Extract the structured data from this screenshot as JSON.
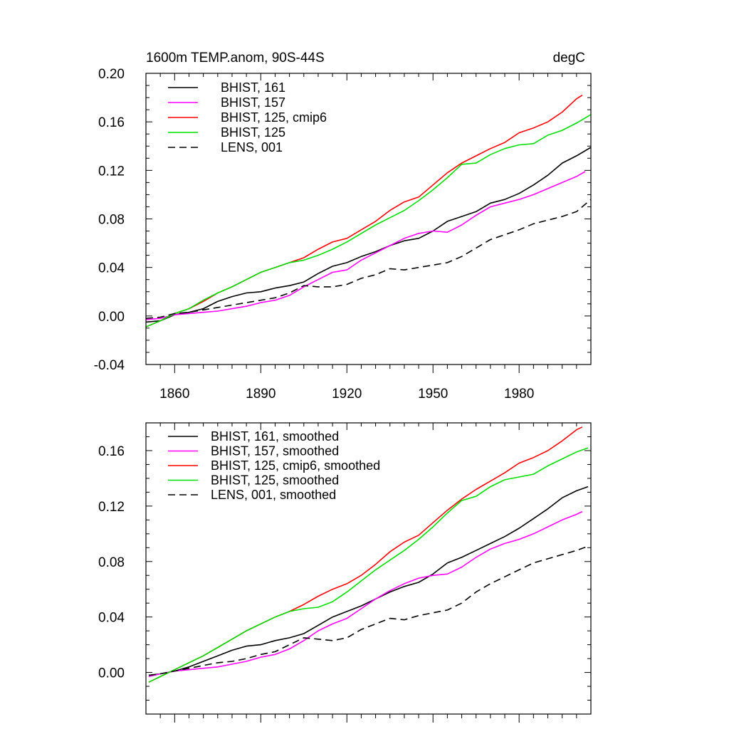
{
  "chart_data": [
    {
      "type": "line",
      "title": "1600m TEMP.anom, 90S-44S",
      "units": "degC",
      "xlim": [
        1850,
        2005
      ],
      "ylim": [
        -0.04,
        0.2
      ],
      "yticks": [
        "-0.04",
        "0.00",
        "0.04",
        "0.08",
        "0.12",
        "0.16",
        "0.20"
      ],
      "xticks": [
        "1860",
        "1890",
        "1920",
        "1950",
        "1980"
      ],
      "grid": false,
      "legend": "top-left",
      "series": [
        {
          "name": "BHIST, 161",
          "color": "#000000",
          "dash": false,
          "x": [
            1850,
            1855,
            1860,
            1865,
            1870,
            1875,
            1880,
            1885,
            1890,
            1895,
            1900,
            1905,
            1910,
            1915,
            1920,
            1925,
            1930,
            1935,
            1940,
            1945,
            1950,
            1955,
            1960,
            1965,
            1970,
            1975,
            1980,
            1985,
            1990,
            1995,
            2000,
            2005
          ],
          "y": [
            -0.005,
            -0.004,
            0.001,
            0.003,
            0.006,
            0.012,
            0.016,
            0.019,
            0.02,
            0.023,
            0.025,
            0.028,
            0.035,
            0.041,
            0.044,
            0.049,
            0.053,
            0.058,
            0.062,
            0.064,
            0.07,
            0.078,
            0.082,
            0.086,
            0.093,
            0.096,
            0.101,
            0.108,
            0.116,
            0.126,
            0.132,
            0.139
          ]
        },
        {
          "name": "BHIST, 157",
          "color": "#ff00ff",
          "dash": false,
          "x": [
            1850,
            1855,
            1860,
            1865,
            1870,
            1875,
            1880,
            1885,
            1890,
            1895,
            1900,
            1905,
            1910,
            1915,
            1920,
            1925,
            1930,
            1935,
            1940,
            1945,
            1950,
            1955,
            1960,
            1965,
            1970,
            1975,
            1980,
            1985,
            1990,
            1995,
            2000,
            2003
          ],
          "y": [
            -0.003,
            -0.002,
            0.001,
            0.002,
            0.003,
            0.004,
            0.006,
            0.008,
            0.011,
            0.013,
            0.017,
            0.024,
            0.03,
            0.036,
            0.038,
            0.046,
            0.052,
            0.058,
            0.064,
            0.068,
            0.07,
            0.069,
            0.075,
            0.083,
            0.09,
            0.093,
            0.096,
            0.1,
            0.105,
            0.11,
            0.115,
            0.119
          ]
        },
        {
          "name": "BHIST, 125, cmip6",
          "color": "#ff0000",
          "dash": false,
          "x": [
            1850,
            1855,
            1860,
            1865,
            1870,
            1875,
            1880,
            1885,
            1890,
            1895,
            1900,
            1905,
            1910,
            1915,
            1920,
            1925,
            1930,
            1935,
            1940,
            1945,
            1950,
            1955,
            1960,
            1965,
            1970,
            1975,
            1980,
            1985,
            1990,
            1995,
            2000,
            2002
          ],
          "y": [
            -0.009,
            -0.004,
            0.002,
            0.006,
            0.012,
            0.019,
            0.024,
            0.03,
            0.036,
            0.04,
            0.044,
            0.048,
            0.055,
            0.061,
            0.064,
            0.071,
            0.078,
            0.087,
            0.094,
            0.098,
            0.108,
            0.118,
            0.126,
            0.132,
            0.138,
            0.143,
            0.151,
            0.155,
            0.16,
            0.168,
            0.179,
            0.182
          ]
        },
        {
          "name": "BHIST, 125",
          "color": "#00dd00",
          "dash": false,
          "x": [
            1850,
            1855,
            1860,
            1865,
            1870,
            1875,
            1880,
            1885,
            1890,
            1895,
            1900,
            1905,
            1910,
            1915,
            1920,
            1925,
            1930,
            1935,
            1940,
            1945,
            1950,
            1955,
            1960,
            1965,
            1970,
            1975,
            1980,
            1985,
            1990,
            1995,
            2000,
            2005
          ],
          "y": [
            -0.009,
            -0.004,
            0.002,
            0.006,
            0.013,
            0.019,
            0.024,
            0.03,
            0.036,
            0.04,
            0.044,
            0.046,
            0.05,
            0.055,
            0.061,
            0.068,
            0.075,
            0.081,
            0.087,
            0.095,
            0.104,
            0.114,
            0.125,
            0.126,
            0.133,
            0.138,
            0.141,
            0.142,
            0.149,
            0.153,
            0.159,
            0.166
          ]
        },
        {
          "name": "LENS, 001",
          "color": "#000000",
          "dash": true,
          "x": [
            1850,
            1855,
            1860,
            1865,
            1870,
            1875,
            1880,
            1885,
            1890,
            1895,
            1900,
            1905,
            1910,
            1915,
            1920,
            1925,
            1930,
            1935,
            1940,
            1945,
            1950,
            1955,
            1960,
            1965,
            1970,
            1975,
            1980,
            1985,
            1990,
            1995,
            2000,
            2005
          ],
          "y": [
            -0.002,
            -0.001,
            0.002,
            0.003,
            0.005,
            0.007,
            0.009,
            0.011,
            0.013,
            0.015,
            0.019,
            0.025,
            0.024,
            0.024,
            0.026,
            0.031,
            0.034,
            0.039,
            0.038,
            0.04,
            0.042,
            0.044,
            0.049,
            0.056,
            0.063,
            0.067,
            0.071,
            0.076,
            0.079,
            0.082,
            0.086,
            0.096
          ]
        }
      ]
    },
    {
      "type": "line",
      "xlim": [
        1850,
        2005
      ],
      "ylim": [
        -0.03,
        0.18
      ],
      "yticks": [
        "0.00",
        "0.04",
        "0.08",
        "0.12",
        "0.16"
      ],
      "grid": false,
      "legend": "top-left",
      "series": [
        {
          "name": "BHIST, 161, smoothed",
          "color": "#000000",
          "dash": false,
          "x": [
            1851,
            1855,
            1860,
            1865,
            1870,
            1875,
            1880,
            1885,
            1890,
            1895,
            1900,
            1905,
            1910,
            1915,
            1920,
            1925,
            1930,
            1935,
            1940,
            1945,
            1950,
            1955,
            1960,
            1965,
            1970,
            1975,
            1980,
            1985,
            1990,
            1995,
            2000,
            2004
          ],
          "y": [
            -0.002,
            -0.001,
            0.001,
            0.004,
            0.008,
            0.012,
            0.016,
            0.019,
            0.02,
            0.023,
            0.025,
            0.028,
            0.034,
            0.04,
            0.044,
            0.048,
            0.053,
            0.058,
            0.062,
            0.065,
            0.071,
            0.079,
            0.083,
            0.088,
            0.093,
            0.098,
            0.104,
            0.111,
            0.118,
            0.126,
            0.131,
            0.134
          ]
        },
        {
          "name": "BHIST, 157, smoothed",
          "color": "#ff00ff",
          "dash": false,
          "x": [
            1851,
            1855,
            1860,
            1865,
            1870,
            1875,
            1880,
            1885,
            1890,
            1895,
            1900,
            1905,
            1910,
            1915,
            1920,
            1925,
            1930,
            1935,
            1940,
            1945,
            1950,
            1955,
            1960,
            1965,
            1970,
            1975,
            1980,
            1985,
            1990,
            1995,
            2000,
            2002
          ],
          "y": [
            -0.003,
            -0.001,
            0.001,
            0.002,
            0.003,
            0.004,
            0.006,
            0.008,
            0.011,
            0.013,
            0.017,
            0.023,
            0.03,
            0.035,
            0.039,
            0.046,
            0.053,
            0.059,
            0.064,
            0.068,
            0.07,
            0.071,
            0.076,
            0.083,
            0.089,
            0.093,
            0.096,
            0.1,
            0.105,
            0.11,
            0.114,
            0.116
          ]
        },
        {
          "name": "BHIST, 125, cmip6, smoothed",
          "color": "#ff0000",
          "dash": false,
          "x": [
            1851,
            1855,
            1860,
            1865,
            1870,
            1875,
            1880,
            1885,
            1890,
            1895,
            1900,
            1905,
            1910,
            1915,
            1920,
            1925,
            1930,
            1935,
            1940,
            1945,
            1950,
            1955,
            1960,
            1965,
            1970,
            1975,
            1980,
            1985,
            1990,
            1995,
            2000,
            2002
          ],
          "y": [
            -0.007,
            -0.003,
            0.002,
            0.007,
            0.012,
            0.018,
            0.024,
            0.03,
            0.035,
            0.04,
            0.044,
            0.049,
            0.055,
            0.06,
            0.064,
            0.07,
            0.078,
            0.087,
            0.094,
            0.099,
            0.108,
            0.117,
            0.125,
            0.132,
            0.138,
            0.144,
            0.151,
            0.155,
            0.16,
            0.167,
            0.175,
            0.177
          ]
        },
        {
          "name": "BHIST, 125, smoothed",
          "color": "#00dd00",
          "dash": false,
          "x": [
            1851,
            1855,
            1860,
            1865,
            1870,
            1875,
            1880,
            1885,
            1890,
            1895,
            1900,
            1905,
            1910,
            1915,
            1920,
            1925,
            1930,
            1935,
            1940,
            1945,
            1950,
            1955,
            1960,
            1965,
            1970,
            1975,
            1980,
            1985,
            1990,
            1995,
            2000,
            2004
          ],
          "y": [
            -0.007,
            -0.003,
            0.002,
            0.007,
            0.012,
            0.018,
            0.024,
            0.03,
            0.035,
            0.04,
            0.044,
            0.046,
            0.047,
            0.051,
            0.058,
            0.066,
            0.074,
            0.081,
            0.088,
            0.096,
            0.105,
            0.115,
            0.124,
            0.127,
            0.134,
            0.139,
            0.141,
            0.143,
            0.149,
            0.154,
            0.159,
            0.162
          ]
        },
        {
          "name": "LENS, 001, smoothed",
          "color": "#000000",
          "dash": true,
          "x": [
            1851,
            1855,
            1860,
            1865,
            1870,
            1875,
            1880,
            1885,
            1890,
            1895,
            1900,
            1905,
            1910,
            1915,
            1920,
            1925,
            1930,
            1935,
            1940,
            1945,
            1950,
            1955,
            1960,
            1965,
            1970,
            1975,
            1980,
            1985,
            1990,
            1995,
            2000,
            2004
          ],
          "y": [
            -0.002,
            -0.001,
            0.001,
            0.003,
            0.005,
            0.007,
            0.008,
            0.01,
            0.013,
            0.015,
            0.02,
            0.025,
            0.024,
            0.023,
            0.025,
            0.031,
            0.035,
            0.039,
            0.038,
            0.041,
            0.043,
            0.045,
            0.05,
            0.058,
            0.064,
            0.069,
            0.074,
            0.079,
            0.082,
            0.085,
            0.088,
            0.091
          ]
        }
      ]
    }
  ]
}
